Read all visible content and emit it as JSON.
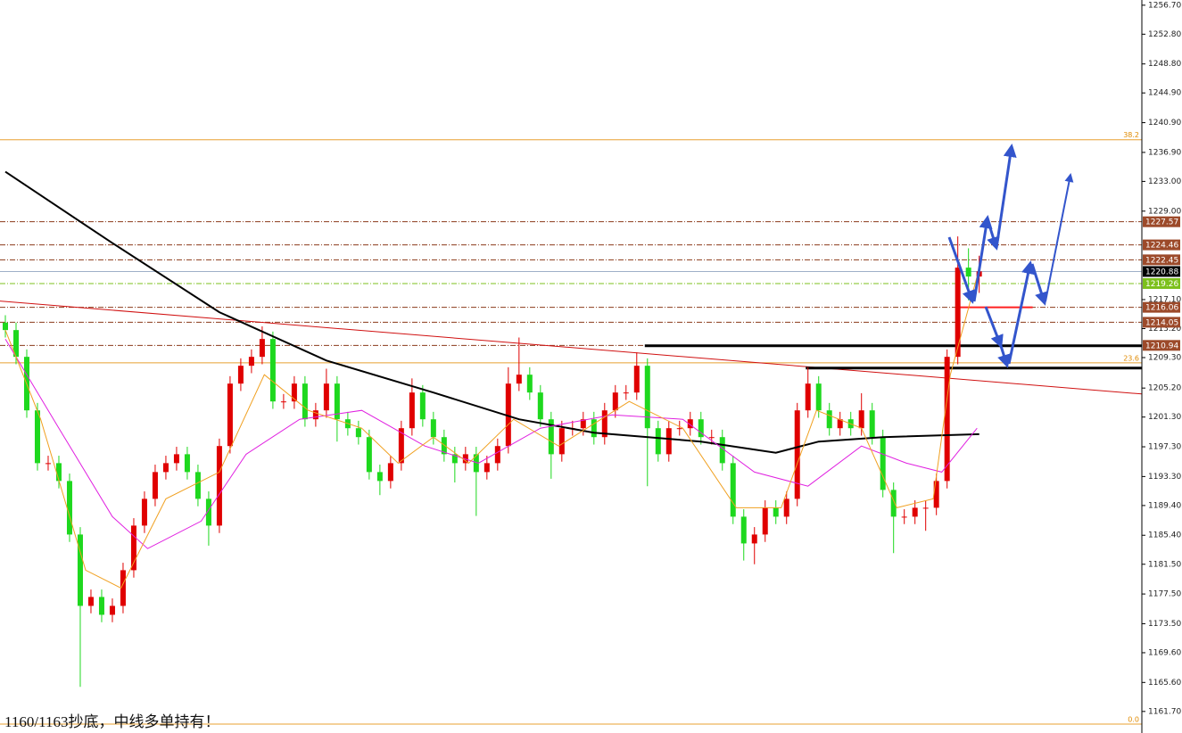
{
  "chart_data": {
    "type": "candlestick",
    "annotation": "1160/1163抄底，中线多单持有！",
    "ylim": [
      1158.8,
      1257.4
    ],
    "xlim": [
      -0.5,
      106.2
    ],
    "yticks": [
      {
        "value": 1256.7,
        "label": "1256.70"
      },
      {
        "value": 1252.8,
        "label": "1252.80"
      },
      {
        "value": 1248.8,
        "label": "1248.80"
      },
      {
        "value": 1244.9,
        "label": "1244.90"
      },
      {
        "value": 1240.9,
        "label": "1240.90"
      },
      {
        "value": 1236.9,
        "label": "1236.90"
      },
      {
        "value": 1233.0,
        "label": "1233.00"
      },
      {
        "value": 1229.0,
        "label": "1229.00"
      },
      {
        "value": 1217.1,
        "label": "1217.10"
      },
      {
        "value": 1213.2,
        "label": "1213.20"
      },
      {
        "value": 1209.3,
        "label": "1209.30"
      },
      {
        "value": 1205.2,
        "label": "1205.20"
      },
      {
        "value": 1201.3,
        "label": "1201.30"
      },
      {
        "value": 1197.3,
        "label": "1197.30"
      },
      {
        "value": 1193.3,
        "label": "1193.30"
      },
      {
        "value": 1189.4,
        "label": "1189.40"
      },
      {
        "value": 1185.4,
        "label": "1185.40"
      },
      {
        "value": 1181.5,
        "label": "1181.50"
      },
      {
        "value": 1177.5,
        "label": "1177.50"
      },
      {
        "value": 1173.5,
        "label": "1173.50"
      },
      {
        "value": 1169.6,
        "label": "1169.60"
      },
      {
        "value": 1165.6,
        "label": "1165.60"
      },
      {
        "value": 1161.7,
        "label": "1161.70"
      }
    ],
    "up_color": "#e00000",
    "down_color": "#1ed81e",
    "candles": {
      "open": [
        1214.0,
        1213.0,
        1209.4,
        1202.2,
        1195.1,
        1195.1,
        1192.7,
        1185.5,
        1175.9,
        1177.1,
        1174.7,
        1175.9,
        1180.7,
        1186.7,
        1190.3,
        1193.9,
        1195.1,
        1196.3,
        1193.9,
        1190.3,
        1186.7,
        1197.4,
        1205.8,
        1208.2,
        1209.4,
        1211.8,
        1203.4,
        1203.4,
        1205.8,
        1201.0,
        1202.2,
        1205.8,
        1201.0,
        1199.8,
        1198.6,
        1193.9,
        1192.7,
        1195.1,
        1199.8,
        1204.6,
        1201.0,
        1198.6,
        1196.3,
        1195.1,
        1196.3,
        1193.9,
        1195.1,
        1197.4,
        1205.8,
        1207.0,
        1204.6,
        1201.0,
        1196.3,
        1199.8,
        1199.8,
        1201.0,
        1198.6,
        1202.2,
        1204.6,
        1204.6,
        1208.2,
        1199.8,
        1196.3,
        1199.8,
        1199.8,
        1201.0,
        1198.6,
        1198.6,
        1195.1,
        1187.9,
        1184.3,
        1185.5,
        1189.1,
        1187.9,
        1190.3,
        1202.2,
        1205.8,
        1202.2,
        1199.8,
        1201.0,
        1199.8,
        1202.2,
        1198.6,
        1191.5,
        1187.9,
        1187.9,
        1189.1,
        1189.1,
        1192.7,
        1209.4,
        1221.4,
        1220.2
      ],
      "high": [
        1215.0,
        1214.0,
        1210.4,
        1203.2,
        1196.1,
        1196.1,
        1193.7,
        1186.5,
        1178.1,
        1178.1,
        1176.9,
        1181.7,
        1187.7,
        1191.3,
        1194.9,
        1196.1,
        1197.3,
        1197.3,
        1194.9,
        1191.3,
        1198.4,
        1206.8,
        1209.2,
        1210.4,
        1213.5,
        1212.8,
        1204.4,
        1206.8,
        1206.8,
        1203.2,
        1207.8,
        1206.8,
        1202.0,
        1200.8,
        1199.6,
        1194.9,
        1196.1,
        1200.8,
        1206.5,
        1205.6,
        1202.0,
        1199.6,
        1197.3,
        1197.3,
        1197.3,
        1196.1,
        1198.4,
        1208.0,
        1212.0,
        1208.0,
        1205.6,
        1202.0,
        1200.8,
        1200.8,
        1202.0,
        1202.0,
        1203.2,
        1205.6,
        1205.6,
        1210.0,
        1209.2,
        1200.8,
        1200.8,
        1200.8,
        1202.0,
        1202.0,
        1199.6,
        1199.6,
        1196.1,
        1188.9,
        1186.5,
        1190.1,
        1190.1,
        1191.3,
        1203.2,
        1208.0,
        1206.8,
        1203.2,
        1202.0,
        1202.0,
        1204.5,
        1203.2,
        1199.6,
        1192.5,
        1188.9,
        1190.1,
        1190.1,
        1193.7,
        1210.4,
        1225.6,
        1224.0,
        1223.0
      ],
      "low": [
        1212.0,
        1208.4,
        1201.2,
        1194.1,
        1194.1,
        1191.7,
        1184.5,
        1165.0,
        1174.9,
        1173.7,
        1173.7,
        1174.9,
        1179.7,
        1185.7,
        1189.3,
        1192.9,
        1194.1,
        1192.9,
        1189.3,
        1184.0,
        1185.7,
        1196.4,
        1204.8,
        1207.2,
        1208.4,
        1202.4,
        1202.4,
        1202.4,
        1200.0,
        1200.0,
        1201.2,
        1198.0,
        1198.8,
        1197.6,
        1192.9,
        1190.8,
        1191.7,
        1194.1,
        1198.8,
        1200.0,
        1197.6,
        1195.3,
        1192.5,
        1194.1,
        1188.0,
        1192.9,
        1194.1,
        1196.4,
        1204.8,
        1203.6,
        1200.0,
        1193.0,
        1195.3,
        1198.8,
        1198.8,
        1197.6,
        1197.6,
        1201.2,
        1203.6,
        1203.6,
        1192.0,
        1195.3,
        1195.3,
        1198.8,
        1198.8,
        1197.6,
        1197.6,
        1194.1,
        1186.9,
        1182.0,
        1181.5,
        1184.5,
        1186.9,
        1186.9,
        1189.3,
        1201.2,
        1201.2,
        1198.8,
        1198.8,
        1198.8,
        1198.8,
        1197.6,
        1190.5,
        1183.0,
        1186.9,
        1186.9,
        1186.0,
        1188.1,
        1191.7,
        1208.4,
        1217.0,
        1218.0
      ],
      "close": [
        1213.0,
        1209.4,
        1202.2,
        1195.1,
        1195.1,
        1192.7,
        1185.5,
        1175.9,
        1177.1,
        1174.7,
        1175.9,
        1180.7,
        1186.7,
        1190.3,
        1193.9,
        1195.1,
        1196.3,
        1193.9,
        1190.3,
        1186.7,
        1197.4,
        1205.8,
        1208.2,
        1209.4,
        1211.8,
        1203.4,
        1203.4,
        1205.8,
        1201.0,
        1202.2,
        1205.8,
        1201.0,
        1199.8,
        1198.6,
        1193.9,
        1192.7,
        1195.1,
        1199.8,
        1204.6,
        1201.0,
        1198.6,
        1196.3,
        1195.1,
        1196.3,
        1193.9,
        1195.1,
        1197.4,
        1205.8,
        1207.0,
        1204.6,
        1201.0,
        1196.3,
        1199.8,
        1199.8,
        1201.0,
        1198.6,
        1202.2,
        1204.6,
        1204.6,
        1208.2,
        1199.8,
        1196.3,
        1199.8,
        1199.8,
        1201.0,
        1198.6,
        1198.6,
        1195.1,
        1187.9,
        1184.3,
        1185.5,
        1189.1,
        1187.9,
        1190.3,
        1202.2,
        1205.8,
        1202.2,
        1199.8,
        1201.0,
        1199.8,
        1202.2,
        1198.6,
        1191.5,
        1187.9,
        1187.9,
        1189.1,
        1189.1,
        1192.7,
        1209.4,
        1221.4,
        1220.2,
        1220.9
      ]
    },
    "lines": [
      {
        "color": "#000000",
        "width": 2,
        "x": [
          0,
          10,
          20,
          30,
          40,
          48,
          55,
          65,
          72,
          76,
          82,
          91
        ],
        "values": [
          1234.3,
          1224.7,
          1215.4,
          1208.9,
          1204.6,
          1201.0,
          1199.2,
          1198.0,
          1196.5,
          1198.0,
          1198.6,
          1199.0
        ]
      },
      {
        "color": "#e020e0",
        "width": 1,
        "x": [
          0,
          5,
          10,
          13.3,
          18.3,
          22.5,
          27.5,
          33.3,
          39.2,
          44.2,
          50,
          56.7,
          63.3,
          70,
          75,
          80,
          84.2,
          87.5,
          90.8
        ],
        "values": [
          1211.8,
          1199.8,
          1187.9,
          1183.6,
          1187.3,
          1196.3,
          1201.0,
          1202.2,
          1197.4,
          1195.1,
          1199.8,
          1201.6,
          1201.0,
          1193.9,
          1192.0,
          1197.4,
          1195.1,
          1193.9,
          1199.8
        ]
      },
      {
        "color": "#f0a020",
        "width": 1,
        "x": [
          0,
          3.3,
          7.5,
          10.8,
          15,
          20,
          24.2,
          28.3,
          33.3,
          36.7,
          40,
          43.3,
          47.5,
          51.7,
          58.3,
          63.3,
          68.3,
          72.5,
          75.8,
          80,
          83.3,
          86.7,
          88.3,
          90.8
        ],
        "values": [
          1213.0,
          1201.0,
          1180.7,
          1178.3,
          1190.3,
          1193.9,
          1207.0,
          1202.2,
          1199.8,
          1195.1,
          1198.6,
          1195.1,
          1201.0,
          1197.4,
          1203.4,
          1199.8,
          1189.1,
          1189.1,
          1202.2,
          1199.8,
          1189.1,
          1190.3,
          1207.0,
          1220.2
        ]
      }
    ],
    "levels": [
      {
        "price": 1227.57,
        "line": "#8b3a1a",
        "bg": "#9c4a2a",
        "dash": true
      },
      {
        "price": 1224.46,
        "line": "#8b3a1a",
        "bg": "#9c4a2a",
        "dash": true
      },
      {
        "price": 1222.45,
        "line": "#8b3a1a",
        "bg": "#9c4a2a",
        "dash": true
      },
      {
        "price": 1220.88,
        "line": "#9fb0c8",
        "bg": "#000000",
        "dash": false
      },
      {
        "price": 1219.26,
        "line": "#7cc01c",
        "bg": "#7cc01c",
        "dash": true
      },
      {
        "price": 1216.06,
        "line": "#8b3a1a",
        "bg": "#9c4a2a",
        "dash": true
      },
      {
        "price": 1214.05,
        "line": "#8b3a1a",
        "bg": "#9c4a2a",
        "dash": true
      },
      {
        "price": 1210.94,
        "line": "#8b3a1a",
        "bg": "#9c4a2a",
        "dash": true
      }
    ],
    "fibs": [
      {
        "label": "38.2",
        "price": 1238.6
      },
      {
        "label": "23.6",
        "price": 1208.6
      },
      {
        "label": "0.0",
        "price": 1160.0
      }
    ],
    "trendlines": [
      {
        "color": "#d01010",
        "width": 1,
        "x": [
          -0.5,
          106.2
        ],
        "values": [
          1216.9,
          1204.4
        ]
      },
      {
        "color": "#000000",
        "width": 3,
        "x": [
          59.75,
          106.2
        ],
        "values": [
          1210.9,
          1210.9
        ]
      },
      {
        "color": "#000000",
        "width": 3,
        "x": [
          74.8,
          106.2
        ],
        "values": [
          1207.9,
          1207.9
        ]
      },
      {
        "color": "#ff2020",
        "width": 2,
        "x": [
          89,
          96
        ],
        "values": [
          1216.06,
          1216.06
        ]
      }
    ]
  }
}
